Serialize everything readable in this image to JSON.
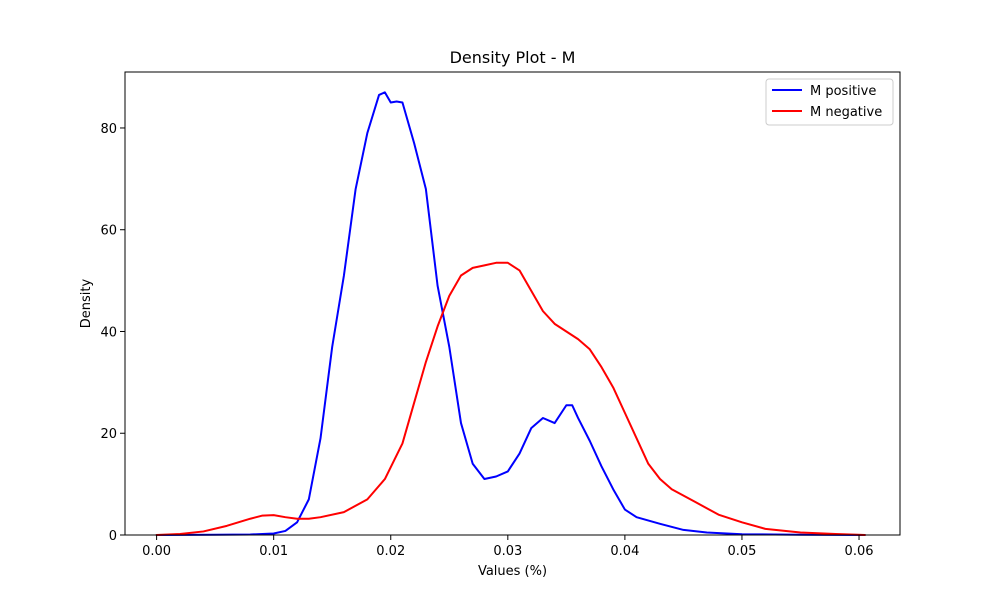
{
  "chart_data": {
    "type": "line",
    "title": "Density Plot - M",
    "xlabel": "Values (%)",
    "ylabel": "Density",
    "xlim": [
      -0.0027,
      0.0635
    ],
    "ylim": [
      0,
      91
    ],
    "xticks": [
      0.0,
      0.01,
      0.02,
      0.03,
      0.04,
      0.05,
      0.06
    ],
    "xtick_labels": [
      "0.00",
      "0.01",
      "0.02",
      "0.03",
      "0.04",
      "0.05",
      "0.06"
    ],
    "yticks": [
      0,
      20,
      40,
      60,
      80
    ],
    "ytick_labels": [
      "0",
      "20",
      "40",
      "60",
      "80"
    ],
    "grid": false,
    "legend_position": "top-right",
    "series": [
      {
        "name": "M positive",
        "color": "#0000ff",
        "points": [
          [
            0.0,
            0.0
          ],
          [
            0.005,
            0.05
          ],
          [
            0.008,
            0.1
          ],
          [
            0.01,
            0.3
          ],
          [
            0.011,
            0.8
          ],
          [
            0.012,
            2.5
          ],
          [
            0.013,
            7
          ],
          [
            0.014,
            19
          ],
          [
            0.015,
            37
          ],
          [
            0.016,
            51
          ],
          [
            0.017,
            68
          ],
          [
            0.018,
            79
          ],
          [
            0.019,
            86.5
          ],
          [
            0.0195,
            87
          ],
          [
            0.02,
            85
          ],
          [
            0.0205,
            85.2
          ],
          [
            0.021,
            85
          ],
          [
            0.022,
            77
          ],
          [
            0.023,
            68
          ],
          [
            0.024,
            49
          ],
          [
            0.025,
            37
          ],
          [
            0.026,
            22
          ],
          [
            0.027,
            14
          ],
          [
            0.028,
            11
          ],
          [
            0.029,
            11.5
          ],
          [
            0.03,
            12.5
          ],
          [
            0.031,
            16
          ],
          [
            0.032,
            21
          ],
          [
            0.033,
            23
          ],
          [
            0.034,
            22
          ],
          [
            0.035,
            25.5
          ],
          [
            0.0355,
            25.5
          ],
          [
            0.036,
            23
          ],
          [
            0.037,
            18.5
          ],
          [
            0.038,
            13.5
          ],
          [
            0.039,
            9
          ],
          [
            0.04,
            5
          ],
          [
            0.041,
            3.5
          ],
          [
            0.043,
            2.2
          ],
          [
            0.045,
            1
          ],
          [
            0.047,
            0.5
          ],
          [
            0.05,
            0.15
          ],
          [
            0.055,
            0.05
          ],
          [
            0.0605,
            0.0
          ]
        ]
      },
      {
        "name": "M negative",
        "color": "#ff0000",
        "points": [
          [
            0.0,
            0.0
          ],
          [
            0.002,
            0.2
          ],
          [
            0.004,
            0.7
          ],
          [
            0.006,
            1.8
          ],
          [
            0.008,
            3.2
          ],
          [
            0.009,
            3.8
          ],
          [
            0.01,
            3.9
          ],
          [
            0.011,
            3.5
          ],
          [
            0.012,
            3.2
          ],
          [
            0.013,
            3.2
          ],
          [
            0.014,
            3.5
          ],
          [
            0.016,
            4.5
          ],
          [
            0.018,
            7
          ],
          [
            0.0195,
            11
          ],
          [
            0.021,
            18
          ],
          [
            0.022,
            26
          ],
          [
            0.023,
            34
          ],
          [
            0.024,
            41
          ],
          [
            0.025,
            47
          ],
          [
            0.026,
            51
          ],
          [
            0.027,
            52.5
          ],
          [
            0.028,
            53
          ],
          [
            0.029,
            53.5
          ],
          [
            0.03,
            53.5
          ],
          [
            0.031,
            52
          ],
          [
            0.032,
            48
          ],
          [
            0.033,
            44
          ],
          [
            0.034,
            41.5
          ],
          [
            0.035,
            40
          ],
          [
            0.036,
            38.5
          ],
          [
            0.037,
            36.5
          ],
          [
            0.038,
            33
          ],
          [
            0.039,
            29
          ],
          [
            0.04,
            24
          ],
          [
            0.041,
            19
          ],
          [
            0.042,
            14
          ],
          [
            0.043,
            11
          ],
          [
            0.044,
            9
          ],
          [
            0.046,
            6.5
          ],
          [
            0.048,
            4
          ],
          [
            0.05,
            2.5
          ],
          [
            0.052,
            1.2
          ],
          [
            0.055,
            0.5
          ],
          [
            0.058,
            0.2
          ],
          [
            0.0605,
            0.0
          ]
        ]
      }
    ]
  }
}
